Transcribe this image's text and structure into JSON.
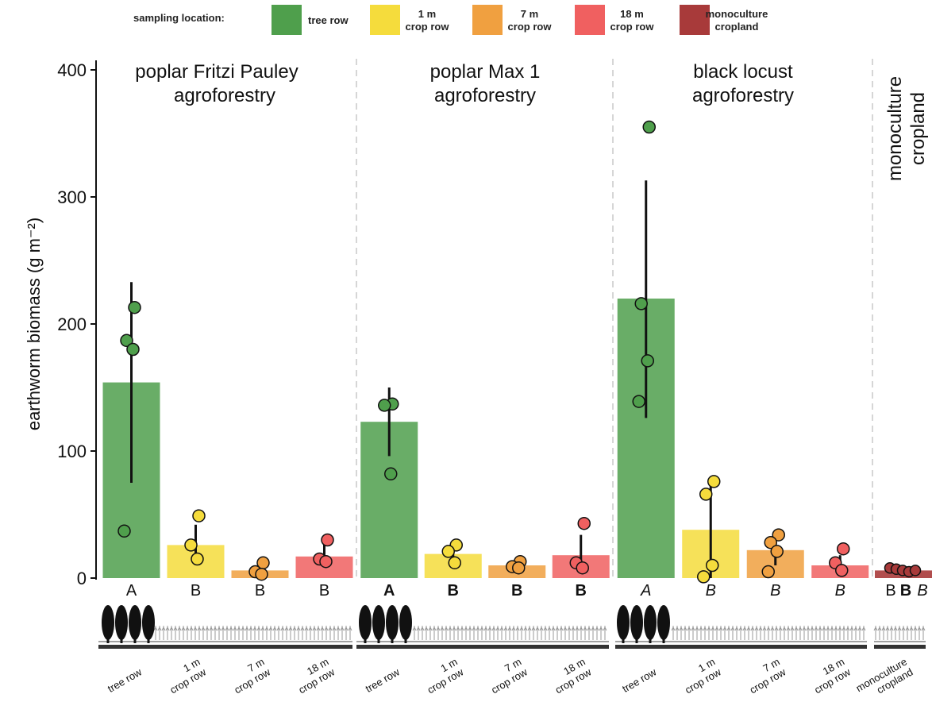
{
  "legend": {
    "title": "sampling location:",
    "items": [
      {
        "label": [
          "tree row"
        ],
        "color": "#4f9f4c"
      },
      {
        "label": [
          "1 m",
          "crop row"
        ],
        "color": "#f5dc3c"
      },
      {
        "label": [
          "7 m",
          "crop row"
        ],
        "color": "#f0a040"
      },
      {
        "label": [
          "18 m",
          "crop row"
        ],
        "color": "#f06060"
      },
      {
        "label": [
          "monoculture",
          "cropland"
        ],
        "color": "#a83a3a"
      }
    ]
  },
  "chart_data": {
    "type": "bar",
    "ylabel": "earthworm biomass (g m⁻²)",
    "ylim": [
      0,
      400
    ],
    "yticks": [
      0,
      100,
      200,
      300,
      400
    ],
    "panels": [
      {
        "title": [
          "poplar Fritzi Pauley",
          "agroforestry"
        ],
        "bars": [
          {
            "location": "tree row",
            "value": 154,
            "err_low": 75,
            "err_high": 233,
            "points": [
              213,
              187,
              180,
              37
            ],
            "sig": "A",
            "sig_style": "normal"
          },
          {
            "location": "1 m crop row",
            "value": 26,
            "err_low": 14,
            "err_high": 42,
            "points": [
              49,
              26,
              15
            ],
            "sig": "B",
            "sig_style": "normal"
          },
          {
            "location": "7 m crop row",
            "value": 6,
            "err_low": 2,
            "err_high": 11,
            "points": [
              12,
              5,
              3
            ],
            "sig": "B",
            "sig_style": "normal"
          },
          {
            "location": "18 m crop row",
            "value": 17,
            "err_low": 11,
            "err_high": 27,
            "points": [
              30,
              15,
              13
            ],
            "sig": "B",
            "sig_style": "normal"
          }
        ]
      },
      {
        "title": [
          "poplar Max 1",
          "agroforestry"
        ],
        "bars": [
          {
            "location": "tree row",
            "value": 123,
            "err_low": 96,
            "err_high": 150,
            "points": [
              137,
              136,
              82
            ],
            "sig": "A",
            "sig_style": "bold"
          },
          {
            "location": "1 m crop row",
            "value": 19,
            "err_low": 12,
            "err_high": 27,
            "points": [
              26,
              21,
              12
            ],
            "sig": "B",
            "sig_style": "bold"
          },
          {
            "location": "7 m crop row",
            "value": 10,
            "err_low": 7,
            "err_high": 14,
            "points": [
              13,
              9,
              8
            ],
            "sig": "B",
            "sig_style": "bold"
          },
          {
            "location": "18 m crop row",
            "value": 18,
            "err_low": 5,
            "err_high": 34,
            "points": [
              43,
              12,
              8
            ],
            "sig": "B",
            "sig_style": "bold"
          }
        ]
      },
      {
        "title": [
          "black locust",
          "agroforestry"
        ],
        "bars": [
          {
            "location": "tree row",
            "value": 220,
            "err_low": 126,
            "err_high": 313,
            "points": [
              355,
              216,
              171,
              139
            ],
            "sig": "A",
            "sig_style": "italic"
          },
          {
            "location": "1 m crop row",
            "value": 38,
            "err_low": 0,
            "err_high": 76,
            "points": [
              76,
              66,
              10,
              1
            ],
            "sig": "B",
            "sig_style": "italic"
          },
          {
            "location": "7 m crop row",
            "value": 22,
            "err_low": 10,
            "err_high": 34,
            "points": [
              34,
              28,
              21,
              5
            ],
            "sig": "B",
            "sig_style": "italic"
          },
          {
            "location": "18 m crop row",
            "value": 10,
            "err_low": 2,
            "err_high": 18,
            "points": [
              23,
              12,
              6
            ],
            "sig": "B",
            "sig_style": "italic"
          }
        ]
      },
      {
        "title": [
          "monoculture",
          "cropland"
        ],
        "bars": [
          {
            "location": "monoculture cropland",
            "value": 6,
            "err_low": 5,
            "err_high": 8,
            "points": [
              8,
              7,
              6,
              5,
              6
            ],
            "sig": "B",
            "sig_style": "normal"
          }
        ]
      }
    ],
    "mono_sig_letters": [
      {
        "text": "B",
        "style": "normal"
      },
      {
        "text": "B",
        "style": "bold"
      },
      {
        "text": "B",
        "style": "italic"
      }
    ],
    "xtick_labels": [
      [
        "tree row"
      ],
      [
        "1 m",
        "crop row"
      ],
      [
        "7 m",
        "crop row"
      ],
      [
        "18 m",
        "crop row"
      ],
      [
        "tree row"
      ],
      [
        "1 m",
        "crop row"
      ],
      [
        "7 m",
        "crop row"
      ],
      [
        "18 m",
        "crop row"
      ],
      [
        "tree row"
      ],
      [
        "1 m",
        "crop row"
      ],
      [
        "7 m",
        "crop row"
      ],
      [
        "18 m",
        "crop row"
      ],
      [
        "monoculture",
        "cropland"
      ]
    ]
  }
}
